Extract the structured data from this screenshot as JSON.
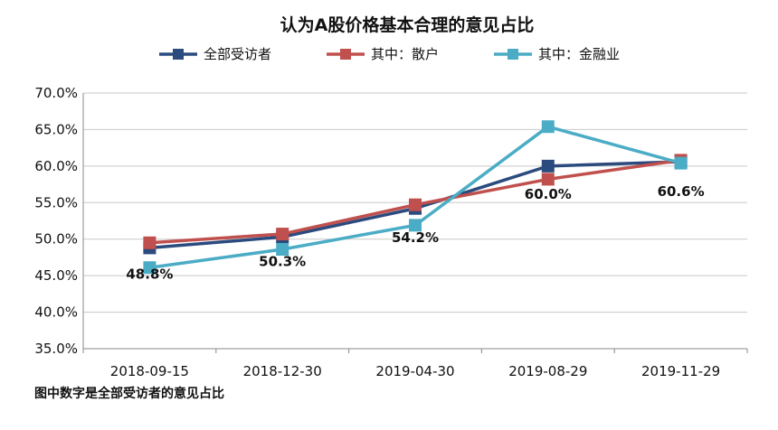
{
  "chart_data": {
    "type": "line",
    "title": "认为A股价格基本合理的意见占比",
    "categories": [
      "2018-09-15",
      "2018-12-30",
      "2019-04-30",
      "2019-08-29",
      "2019-11-29"
    ],
    "ylim": [
      35,
      70
    ],
    "ytick_step": 5,
    "y_unit": "%",
    "grid": true,
    "legend_position": "top",
    "series": [
      {
        "name": "全部受访者",
        "color": "#2b4a7e",
        "values": [
          48.8,
          50.3,
          54.2,
          60.0,
          60.6
        ]
      },
      {
        "name": "其中：散户",
        "color": "#c0504d",
        "values": [
          49.5,
          50.7,
          54.7,
          58.2,
          60.8
        ]
      },
      {
        "name": "其中：金融业",
        "color": "#4bacc6",
        "values": [
          46.1,
          48.6,
          51.9,
          65.4,
          60.4
        ]
      }
    ],
    "data_labels": [
      "48.8%",
      "50.3%",
      "54.2%",
      "60.0%",
      "60.6%"
    ],
    "footnote": "图中数字是全部受访者的意见占比"
  }
}
